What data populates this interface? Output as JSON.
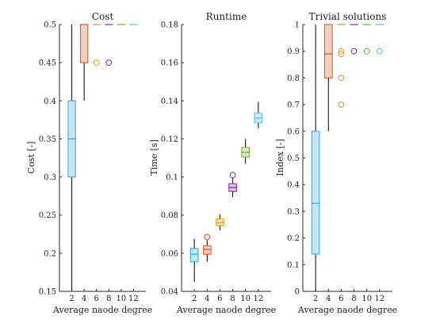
{
  "colors": {
    "2": "#29a8e0",
    "4": "#d9541a",
    "6": "#d3a215",
    "8": "#7e2f8e",
    "10": "#77ac30",
    "12": "#4dbeee",
    "whisker": "#000000"
  },
  "chart_data": [
    {
      "type": "box",
      "title": "Cost",
      "xlabel": "Average naode degree",
      "ylabel": "Cost [-]",
      "ylim": [
        0.15,
        0.5
      ],
      "yticks": [
        0.15,
        0.2,
        0.25,
        0.3,
        0.35,
        0.4,
        0.45,
        0.5
      ],
      "ytick_labels": [
        "0.15",
        "0.2",
        "0.25",
        "0.3",
        "0.35",
        "0.4",
        "0.45",
        "0.5"
      ],
      "categories": [
        "2",
        "4",
        "6",
        "8",
        "10",
        "12"
      ],
      "boxes": [
        {
          "x": "2",
          "whisker_low": 0.15,
          "q1": 0.3,
          "median": 0.35,
          "q3": 0.4,
          "whisker_high": 0.5,
          "outliers": []
        },
        {
          "x": "4",
          "whisker_low": 0.4,
          "q1": 0.45,
          "median": 0.5,
          "q3": 0.5,
          "whisker_high": 0.5,
          "outliers": []
        },
        {
          "x": "6",
          "whisker_low": 0.5,
          "q1": 0.5,
          "median": 0.5,
          "q3": 0.5,
          "whisker_high": 0.5,
          "outliers": [
            0.45
          ]
        },
        {
          "x": "8",
          "whisker_low": 0.5,
          "q1": 0.5,
          "median": 0.5,
          "q3": 0.5,
          "whisker_high": 0.5,
          "outliers": [
            0.45
          ]
        },
        {
          "x": "10",
          "whisker_low": 0.5,
          "q1": 0.5,
          "median": 0.5,
          "q3": 0.5,
          "whisker_high": 0.5,
          "outliers": []
        },
        {
          "x": "12",
          "whisker_low": 0.5,
          "q1": 0.5,
          "median": 0.5,
          "q3": 0.5,
          "whisker_high": 0.5,
          "outliers": []
        }
      ]
    },
    {
      "type": "box",
      "title": "Runtime",
      "xlabel": "Average naode degree",
      "ylabel": "Time [s]",
      "ylim": [
        0.04,
        0.18
      ],
      "yticks": [
        0.04,
        0.06,
        0.08,
        0.1,
        0.12,
        0.14,
        0.16,
        0.18
      ],
      "ytick_labels": [
        "0.04",
        "0.06",
        "0.08",
        "0.1",
        "0.12",
        "0.14",
        "0.16",
        "0.18"
      ],
      "categories": [
        "2",
        "4",
        "6",
        "8",
        "10",
        "12"
      ],
      "boxes": [
        {
          "x": "2",
          "whisker_low": 0.045,
          "q1": 0.0555,
          "median": 0.0595,
          "q3": 0.0625,
          "whisker_high": 0.0675,
          "outliers": []
        },
        {
          "x": "4",
          "whisker_low": 0.0555,
          "q1": 0.0595,
          "median": 0.062,
          "q3": 0.064,
          "whisker_high": 0.067,
          "outliers": [
            0.0685
          ]
        },
        {
          "x": "6",
          "whisker_low": 0.072,
          "q1": 0.0745,
          "median": 0.076,
          "q3": 0.078,
          "whisker_high": 0.0805,
          "outliers": []
        },
        {
          "x": "8",
          "whisker_low": 0.0895,
          "q1": 0.0925,
          "median": 0.0945,
          "q3": 0.0965,
          "whisker_high": 0.0995,
          "outliers": [
            0.101
          ]
        },
        {
          "x": "10",
          "whisker_low": 0.107,
          "q1": 0.1105,
          "median": 0.113,
          "q3": 0.1155,
          "whisker_high": 0.12,
          "outliers": []
        },
        {
          "x": "12",
          "whisker_low": 0.1255,
          "q1": 0.1285,
          "median": 0.131,
          "q3": 0.1335,
          "whisker_high": 0.1395,
          "outliers": []
        }
      ]
    },
    {
      "type": "box",
      "title": "Trivial solutions",
      "xlabel": "Average naode degree",
      "ylabel": "Index [-]",
      "ylim": [
        0,
        1
      ],
      "yticks": [
        0,
        0.1,
        0.2,
        0.3,
        0.4,
        0.5,
        0.6,
        0.7,
        0.8,
        0.9,
        1
      ],
      "ytick_labels": [
        "0",
        "0.1",
        "0.2",
        "0.3",
        "0.4",
        "0.5",
        "0.6",
        "0.7",
        "0.8",
        "0.9",
        "1"
      ],
      "categories": [
        "2",
        "4",
        "6",
        "8",
        "10",
        "12"
      ],
      "boxes": [
        {
          "x": "2",
          "whisker_low": 0,
          "q1": 0.14,
          "median": 0.33,
          "q3": 0.6,
          "whisker_high": 1,
          "outliers": []
        },
        {
          "x": "4",
          "whisker_low": 0.6,
          "q1": 0.8,
          "median": 0.89,
          "q3": 1,
          "whisker_high": 1,
          "outliers": []
        },
        {
          "x": "6",
          "whisker_low": 1,
          "q1": 1,
          "median": 1,
          "q3": 1,
          "whisker_high": 1,
          "outliers": [
            0.9,
            0.89,
            0.8,
            0.7
          ]
        },
        {
          "x": "8",
          "whisker_low": 1,
          "q1": 1,
          "median": 1,
          "q3": 1,
          "whisker_high": 1,
          "outliers": [
            0.9
          ]
        },
        {
          "x": "10",
          "whisker_low": 1,
          "q1": 1,
          "median": 1,
          "q3": 1,
          "whisker_high": 1,
          "outliers": [
            0.9
          ]
        },
        {
          "x": "12",
          "whisker_low": 1,
          "q1": 1,
          "median": 1,
          "q3": 1,
          "whisker_high": 1,
          "outliers": [
            0.9
          ]
        }
      ]
    }
  ]
}
